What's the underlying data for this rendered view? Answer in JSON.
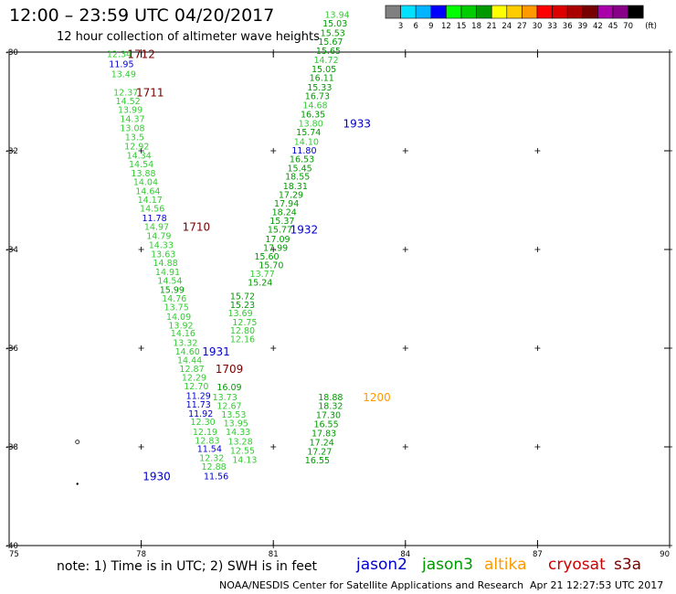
{
  "title": "12:00 – 23:59 UTC 04/20/2017",
  "subtitle": "12 hour collection of altimeter wave heights",
  "legend": {
    "colors": [
      "#808080",
      "#00e0ff",
      "#00b4ff",
      "#0000ff",
      "#00ff00",
      "#00cc00",
      "#009900",
      "#ffff00",
      "#ffcc00",
      "#ff9900",
      "#ff0000",
      "#dd0000",
      "#aa0000",
      "#770000",
      "#aa00aa",
      "#880088",
      "#000000"
    ],
    "labels": [
      "3",
      "6",
      "9",
      "12",
      "15",
      "18",
      "21",
      "24",
      "27",
      "30",
      "33",
      "36",
      "39",
      "42",
      "45",
      "70"
    ],
    "unit": "(ft)"
  },
  "axes": {
    "y_labels": [
      "-30",
      "-32",
      "-34",
      "-36",
      "-38",
      "-40"
    ],
    "x_labels": [
      "75",
      "78",
      "81",
      "84",
      "87",
      "90"
    ]
  },
  "chart_data": {
    "type": "scatter",
    "xlim": [
      75,
      90
    ],
    "ylim": [
      -40,
      -30
    ],
    "points_color_key": {
      "gray": "#808080",
      "blue": "#0000cc",
      "lgreen": "#33cc33",
      "green": "#009900"
    },
    "labels": [
      {
        "lon": 77.5,
        "lat": -30.05,
        "text": "12.34",
        "c": "lgreen"
      },
      {
        "lon": 77.55,
        "lat": -30.25,
        "text": "11.95",
        "c": "blue"
      },
      {
        "lon": 77.6,
        "lat": -30.45,
        "text": "13.49",
        "c": "lgreen"
      },
      {
        "lon": 77.65,
        "lat": -30.82,
        "text": "12.37",
        "c": "lgreen"
      },
      {
        "lon": 77.7,
        "lat": -31.0,
        "text": "14.52",
        "c": "lgreen"
      },
      {
        "lon": 77.75,
        "lat": -31.18,
        "text": "13.99",
        "c": "lgreen"
      },
      {
        "lon": 77.8,
        "lat": -31.36,
        "text": "14.37",
        "c": "lgreen"
      },
      {
        "lon": 77.8,
        "lat": -31.55,
        "text": "13.08",
        "c": "lgreen"
      },
      {
        "lon": 77.85,
        "lat": -31.73,
        "text": "13.5",
        "c": "lgreen"
      },
      {
        "lon": 77.9,
        "lat": -31.92,
        "text": "12.92",
        "c": "lgreen"
      },
      {
        "lon": 77.95,
        "lat": -32.1,
        "text": "14.34",
        "c": "lgreen"
      },
      {
        "lon": 78.0,
        "lat": -32.28,
        "text": "14.54",
        "c": "lgreen"
      },
      {
        "lon": 78.05,
        "lat": -32.46,
        "text": "13.88",
        "c": "lgreen"
      },
      {
        "lon": 78.1,
        "lat": -32.64,
        "text": "14.04",
        "c": "lgreen"
      },
      {
        "lon": 78.15,
        "lat": -32.82,
        "text": "14.64",
        "c": "lgreen"
      },
      {
        "lon": 78.2,
        "lat": -33.0,
        "text": "14.17",
        "c": "lgreen"
      },
      {
        "lon": 78.25,
        "lat": -33.18,
        "text": "14.56",
        "c": "lgreen"
      },
      {
        "lon": 78.3,
        "lat": -33.37,
        "text": "11.78",
        "c": "blue"
      },
      {
        "lon": 78.35,
        "lat": -33.55,
        "text": "14.97",
        "c": "lgreen"
      },
      {
        "lon": 78.4,
        "lat": -33.73,
        "text": "14.79",
        "c": "lgreen"
      },
      {
        "lon": 78.45,
        "lat": -33.92,
        "text": "14.33",
        "c": "lgreen"
      },
      {
        "lon": 78.5,
        "lat": -34.1,
        "text": "13.63",
        "c": "lgreen"
      },
      {
        "lon": 78.55,
        "lat": -34.28,
        "text": "14.88",
        "c": "lgreen"
      },
      {
        "lon": 78.6,
        "lat": -34.46,
        "text": "14.91",
        "c": "lgreen"
      },
      {
        "lon": 78.65,
        "lat": -34.64,
        "text": "14.54",
        "c": "lgreen"
      },
      {
        "lon": 78.7,
        "lat": -34.82,
        "text": "15.99",
        "c": "green"
      },
      {
        "lon": 78.75,
        "lat": -35.0,
        "text": "14.76",
        "c": "lgreen"
      },
      {
        "lon": 78.8,
        "lat": -35.18,
        "text": "13.75",
        "c": "lgreen"
      },
      {
        "lon": 78.85,
        "lat": -35.37,
        "text": "14.09",
        "c": "lgreen"
      },
      {
        "lon": 78.9,
        "lat": -35.55,
        "text": "13.92",
        "c": "lgreen"
      },
      {
        "lon": 78.95,
        "lat": -35.7,
        "text": "14.16",
        "c": "lgreen"
      },
      {
        "lon": 79.0,
        "lat": -35.9,
        "text": "13.32",
        "c": "lgreen"
      },
      {
        "lon": 79.05,
        "lat": -36.07,
        "text": "14.60",
        "c": "lgreen"
      },
      {
        "lon": 79.1,
        "lat": -36.25,
        "text": "14.44",
        "c": "lgreen"
      },
      {
        "lon": 79.15,
        "lat": -36.43,
        "text": "12.87",
        "c": "lgreen"
      },
      {
        "lon": 79.2,
        "lat": -36.6,
        "text": "12.29",
        "c": "lgreen"
      },
      {
        "lon": 79.25,
        "lat": -36.78,
        "text": "12.70",
        "c": "lgreen"
      },
      {
        "lon": 79.3,
        "lat": -36.97,
        "text": "11.29",
        "c": "blue"
      },
      {
        "lon": 79.3,
        "lat": -37.15,
        "text": "11.73",
        "c": "blue"
      },
      {
        "lon": 79.35,
        "lat": -37.33,
        "text": "11.92",
        "c": "blue"
      },
      {
        "lon": 79.4,
        "lat": -37.5,
        "text": "12.30",
        "c": "lgreen"
      },
      {
        "lon": 79.45,
        "lat": -37.7,
        "text": "12.19",
        "c": "lgreen"
      },
      {
        "lon": 79.5,
        "lat": -37.88,
        "text": "12.83",
        "c": "lgreen"
      },
      {
        "lon": 79.55,
        "lat": -38.05,
        "text": "11.54",
        "c": "blue"
      },
      {
        "lon": 79.6,
        "lat": -38.23,
        "text": "12.32",
        "c": "lgreen"
      },
      {
        "lon": 79.65,
        "lat": -38.41,
        "text": "12.88",
        "c": "lgreen"
      },
      {
        "lon": 79.7,
        "lat": -38.6,
        "text": "11.56",
        "c": "blue"
      },
      {
        "lon": 80.0,
        "lat": -36.8,
        "text": "16.09",
        "c": "green"
      },
      {
        "lon": 79.9,
        "lat": -37.0,
        "text": "13.73",
        "c": "lgreen"
      },
      {
        "lon": 80.0,
        "lat": -37.18,
        "text": "12.67",
        "c": "lgreen"
      },
      {
        "lon": 80.1,
        "lat": -37.35,
        "text": "13.53",
        "c": "lgreen"
      },
      {
        "lon": 80.15,
        "lat": -37.53,
        "text": "13.95",
        "c": "lgreen"
      },
      {
        "lon": 80.2,
        "lat": -37.7,
        "text": "14.33",
        "c": "lgreen"
      },
      {
        "lon": 80.25,
        "lat": -37.9,
        "text": "13.28",
        "c": "lgreen"
      },
      {
        "lon": 80.3,
        "lat": -38.08,
        "text": "12.55",
        "c": "lgreen"
      },
      {
        "lon": 80.35,
        "lat": -38.27,
        "text": "14.13",
        "c": "lgreen"
      },
      {
        "lon": 80.3,
        "lat": -34.95,
        "text": "15.72",
        "c": "green"
      },
      {
        "lon": 80.3,
        "lat": -35.13,
        "text": "15.23",
        "c": "green"
      },
      {
        "lon": 80.25,
        "lat": -35.3,
        "text": "13.69",
        "c": "lgreen"
      },
      {
        "lon": 80.35,
        "lat": -35.48,
        "text": "12.75",
        "c": "lgreen"
      },
      {
        "lon": 80.3,
        "lat": -35.65,
        "text": "12.80",
        "c": "lgreen"
      },
      {
        "lon": 80.3,
        "lat": -35.82,
        "text": "12.16",
        "c": "lgreen"
      },
      {
        "lon": 80.75,
        "lat": -34.5,
        "text": "13.77",
        "c": "lgreen"
      },
      {
        "lon": 80.7,
        "lat": -34.68,
        "text": "15.24",
        "c": "green"
      },
      {
        "lon": 80.85,
        "lat": -34.15,
        "text": "15.60",
        "c": "green"
      },
      {
        "lon": 80.95,
        "lat": -34.32,
        "text": "15.70",
        "c": "green"
      },
      {
        "lon": 81.05,
        "lat": -33.97,
        "text": "17.99",
        "c": "green"
      },
      {
        "lon": 81.1,
        "lat": -33.8,
        "text": "17.09",
        "c": "green"
      },
      {
        "lon": 81.15,
        "lat": -33.6,
        "text": "15.77",
        "c": "green"
      },
      {
        "lon": 81.2,
        "lat": -33.43,
        "text": "15.37",
        "c": "green"
      },
      {
        "lon": 81.25,
        "lat": -33.25,
        "text": "18.24",
        "c": "green"
      },
      {
        "lon": 81.3,
        "lat": -33.07,
        "text": "17.94",
        "c": "green"
      },
      {
        "lon": 81.4,
        "lat": -32.9,
        "text": "17.29",
        "c": "green"
      },
      {
        "lon": 81.5,
        "lat": -32.72,
        "text": "18.31",
        "c": "green"
      },
      {
        "lon": 81.55,
        "lat": -32.53,
        "text": "18.55",
        "c": "green"
      },
      {
        "lon": 81.6,
        "lat": -32.36,
        "text": "15.45",
        "c": "green"
      },
      {
        "lon": 81.65,
        "lat": -32.18,
        "text": "16.53",
        "c": "green"
      },
      {
        "lon": 81.7,
        "lat": -32.0,
        "text": "11.80",
        "c": "blue"
      },
      {
        "lon": 81.75,
        "lat": -31.82,
        "text": "14.10",
        "c": "lgreen"
      },
      {
        "lon": 81.8,
        "lat": -31.63,
        "text": "15.74",
        "c": "green"
      },
      {
        "lon": 81.85,
        "lat": -31.45,
        "text": "13.80",
        "c": "lgreen"
      },
      {
        "lon": 81.9,
        "lat": -31.27,
        "text": "16.35",
        "c": "green"
      },
      {
        "lon": 81.95,
        "lat": -31.08,
        "text": "14.68",
        "c": "lgreen"
      },
      {
        "lon": 82.0,
        "lat": -30.9,
        "text": "16.73",
        "c": "green"
      },
      {
        "lon": 82.05,
        "lat": -30.72,
        "text": "15.33",
        "c": "green"
      },
      {
        "lon": 82.1,
        "lat": -30.53,
        "text": "16.11",
        "c": "green"
      },
      {
        "lon": 82.15,
        "lat": -30.35,
        "text": "15.05",
        "c": "green"
      },
      {
        "lon": 82.2,
        "lat": -30.17,
        "text": "14.72",
        "c": "lgreen"
      },
      {
        "lon": 82.25,
        "lat": -29.98,
        "text": "15.65",
        "c": "green"
      },
      {
        "lon": 82.3,
        "lat": -29.8,
        "text": "15.67",
        "c": "green"
      },
      {
        "lon": 82.35,
        "lat": -29.62,
        "text": "15.53",
        "c": "green"
      },
      {
        "lon": 82.4,
        "lat": -29.43,
        "text": "15.03",
        "c": "green"
      },
      {
        "lon": 82.45,
        "lat": -29.25,
        "text": "13.94",
        "c": "lgreen"
      },
      {
        "lon": 82.3,
        "lat": -37.0,
        "text": "18.88",
        "c": "green"
      },
      {
        "lon": 82.3,
        "lat": -37.18,
        "text": "18.32",
        "c": "green"
      },
      {
        "lon": 82.25,
        "lat": -37.36,
        "text": "17.30",
        "c": "green"
      },
      {
        "lon": 82.2,
        "lat": -37.55,
        "text": "16.55",
        "c": "green"
      },
      {
        "lon": 82.15,
        "lat": -37.73,
        "text": "17.83",
        "c": "green"
      },
      {
        "lon": 82.1,
        "lat": -37.92,
        "text": "17.24",
        "c": "green"
      },
      {
        "lon": 82.05,
        "lat": -38.1,
        "text": "17.27",
        "c": "green"
      },
      {
        "lon": 82.0,
        "lat": -38.28,
        "text": "16.55",
        "c": "green"
      }
    ],
    "time_tags": [
      {
        "lon": 78.0,
        "lat": -30.05,
        "text": "1712",
        "color": "#770000"
      },
      {
        "lon": 78.2,
        "lat": -30.82,
        "text": "1711",
        "color": "#770000"
      },
      {
        "lon": 79.25,
        "lat": -33.55,
        "text": "1710",
        "color": "#770000"
      },
      {
        "lon": 80.0,
        "lat": -36.43,
        "text": "1709",
        "color": "#770000"
      },
      {
        "lon": 79.7,
        "lat": -36.07,
        "text": "1931",
        "color": "#0000cc"
      },
      {
        "lon": 78.35,
        "lat": -38.6,
        "text": "1930",
        "color": "#0000cc"
      },
      {
        "lon": 81.7,
        "lat": -33.6,
        "text": "1932",
        "color": "#0000cc"
      },
      {
        "lon": 82.9,
        "lat": -31.45,
        "text": "1933",
        "color": "#0000cc"
      },
      {
        "lon": 83.35,
        "lat": -37.0,
        "text": "1200",
        "color": "#ff9900"
      }
    ]
  },
  "footer": {
    "note": "note: 1) Time is in UTC; 2) SWH is in feet",
    "credit": "NOAA/NESDIS Center for Satellite Applications and Research",
    "timestamp": "Apr 21 12:27:53 UTC 2017",
    "satellites": [
      {
        "name": "jason2",
        "color": "#0000cc"
      },
      {
        "name": "jason3",
        "color": "#009900"
      },
      {
        "name": "altika",
        "color": "#ff9900"
      },
      {
        "name": "cryosat",
        "color": "#cc0000"
      },
      {
        "name": "s3a",
        "color": "#770000"
      }
    ]
  }
}
